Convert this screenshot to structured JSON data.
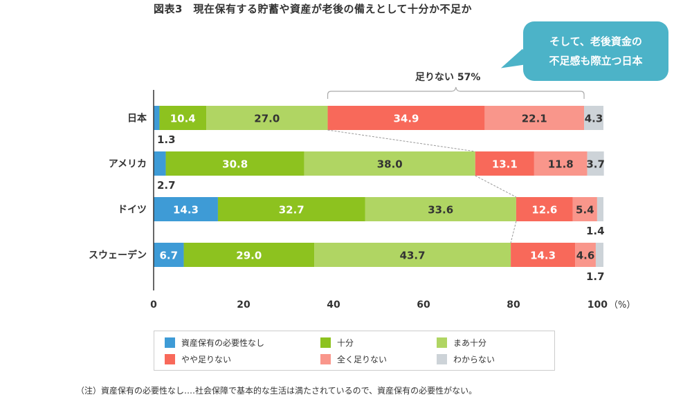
{
  "chart_data": {
    "type": "bar",
    "orientation": "horizontal-stacked",
    "title": "図表3　現在保有する貯蓄や資産が老後の備えとして十分か不足か",
    "categories": [
      "日本",
      "アメリカ",
      "ドイツ",
      "スウェーデン"
    ],
    "series": [
      {
        "name": "資産保有の必要性なし",
        "color": "#3e9bd6",
        "values": [
          1.3,
          2.7,
          14.3,
          6.7
        ]
      },
      {
        "name": "十分",
        "color": "#8dc21f",
        "values": [
          10.4,
          30.8,
          32.7,
          29.0
        ]
      },
      {
        "name": "まあ十分",
        "color": "#b0d563",
        "values": [
          27.0,
          38.0,
          33.6,
          43.7
        ]
      },
      {
        "name": "やや足りない",
        "color": "#f8695a",
        "values": [
          34.9,
          13.1,
          12.6,
          14.3
        ]
      },
      {
        "name": "全く足りない",
        "color": "#f9968b",
        "values": [
          22.1,
          11.8,
          5.4,
          4.6
        ]
      },
      {
        "name": "わからない",
        "color": "#cdd3d8",
        "values": [
          4.3,
          3.7,
          1.4,
          1.7
        ]
      }
    ],
    "xlim": [
      0,
      100
    ],
    "xticks": [
      "0",
      "20",
      "40",
      "60",
      "80",
      "100"
    ],
    "xunit": "（%）",
    "grid": false,
    "legend_placement": "bottom",
    "annotations": {
      "bracket_label": "足りない 57%",
      "callout_line1": "そして、老後資金の",
      "callout_line2": "不足感も際立つ日本"
    }
  },
  "note": "（注）資産保有の必要性なし‥‥社会保障で基本的な生活は満たされているので、資産保有の必要性がない。"
}
